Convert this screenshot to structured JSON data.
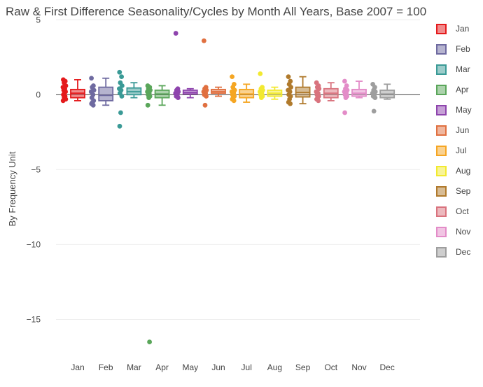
{
  "chart_data": {
    "type": "box",
    "title": "Raw & First Difference Seasonality/Cycles by Month All Years, Base 2007 = 100",
    "xlabel": "",
    "ylabel": "By Frequency Unit",
    "ylim": [
      -17.5,
      5.2
    ],
    "yticks": [
      5,
      0,
      -5,
      -10,
      -15
    ],
    "ytick_labels": [
      "5",
      "0",
      "−5",
      "−10",
      "−15"
    ],
    "grid": true,
    "legend_position": "right",
    "categories": [
      "Jan",
      "Feb",
      "Mar",
      "Apr",
      "May",
      "Jun",
      "Jul",
      "Aug",
      "Sep",
      "Oct",
      "Nov",
      "Dec"
    ],
    "series": [
      {
        "name": "Jan",
        "color": "#e41a1c",
        "box": {
          "q1": -0.2,
          "median": 0.1,
          "q3": 0.35,
          "whisker_low": -0.4,
          "whisker_high": 1.0
        },
        "points": [
          1.0,
          0.9,
          0.8,
          0.6,
          0.5,
          0.4,
          0.3,
          0.2,
          0.1,
          0.0,
          -0.1,
          -0.2,
          -0.3,
          -0.4
        ]
      },
      {
        "name": "Feb",
        "color": "#6e6aa0",
        "box": {
          "q1": -0.4,
          "median": -0.05,
          "q3": 0.5,
          "whisker_low": -0.7,
          "whisker_high": 1.1
        },
        "points": [
          1.1,
          0.6,
          0.5,
          0.3,
          0.2,
          0.0,
          -0.2,
          -0.4,
          -0.5,
          -0.6,
          -0.7
        ]
      },
      {
        "name": "Mar",
        "color": "#3a9a96",
        "box": {
          "q1": 0.0,
          "median": 0.2,
          "q3": 0.45,
          "whisker_low": -0.2,
          "whisker_high": 0.8
        },
        "points": [
          1.5,
          1.2,
          0.8,
          0.6,
          0.4,
          0.3,
          0.1,
          -0.1,
          -1.2,
          -2.1
        ]
      },
      {
        "name": "Apr",
        "color": "#5aa65a",
        "box": {
          "q1": -0.2,
          "median": 0.05,
          "q3": 0.3,
          "whisker_low": -0.7,
          "whisker_high": 0.6
        },
        "points": [
          0.6,
          0.5,
          0.4,
          0.3,
          0.2,
          0.1,
          0.0,
          -0.1,
          -0.2,
          -0.7,
          -16.5
        ]
      },
      {
        "name": "May",
        "color": "#8e44ad",
        "box": {
          "q1": 0.05,
          "median": 0.15,
          "q3": 0.3,
          "whisker_low": -0.2,
          "whisker_high": 0.4
        },
        "points": [
          4.1,
          0.4,
          0.3,
          0.2,
          0.1,
          0.0,
          -0.1,
          -0.2
        ]
      },
      {
        "name": "Jun",
        "color": "#e07040",
        "box": {
          "q1": 0.1,
          "median": 0.2,
          "q3": 0.35,
          "whisker_low": -0.1,
          "whisker_high": 0.5
        },
        "points": [
          3.6,
          0.5,
          0.4,
          0.3,
          0.2,
          0.1,
          0.0,
          -0.1,
          -0.7
        ]
      },
      {
        "name": "Jul",
        "color": "#f5a623",
        "box": {
          "q1": -0.2,
          "median": 0.05,
          "q3": 0.35,
          "whisker_low": -0.5,
          "whisker_high": 0.7
        },
        "points": [
          1.2,
          0.7,
          0.5,
          0.3,
          0.2,
          0.1,
          0.0,
          -0.1,
          -0.2,
          -0.3,
          -0.4
        ]
      },
      {
        "name": "Aug",
        "color": "#f2e930",
        "box": {
          "q1": -0.1,
          "median": 0.1,
          "q3": 0.3,
          "whisker_low": -0.3,
          "whisker_high": 0.5
        },
        "points": [
          1.4,
          0.5,
          0.4,
          0.3,
          0.2,
          0.1,
          0.0,
          -0.1,
          -0.2
        ]
      },
      {
        "name": "Sep",
        "color": "#b07a2c",
        "box": {
          "q1": -0.15,
          "median": 0.15,
          "q3": 0.5,
          "whisker_low": -0.6,
          "whisker_high": 1.2
        },
        "points": [
          1.2,
          0.9,
          0.7,
          0.5,
          0.3,
          0.2,
          0.0,
          -0.1,
          -0.3,
          -0.5,
          -0.6
        ]
      },
      {
        "name": "Oct",
        "color": "#d9737e",
        "box": {
          "q1": -0.2,
          "median": 0.1,
          "q3": 0.4,
          "whisker_low": -0.4,
          "whisker_high": 0.8
        },
        "points": [
          0.8,
          0.6,
          0.5,
          0.4,
          0.2,
          0.1,
          0.0,
          -0.1,
          -0.2,
          -0.3,
          -0.4
        ]
      },
      {
        "name": "Nov",
        "color": "#e38cc8",
        "box": {
          "q1": -0.1,
          "median": 0.1,
          "q3": 0.35,
          "whisker_low": -0.2,
          "whisker_high": 0.9
        },
        "points": [
          0.9,
          0.6,
          0.4,
          0.3,
          0.2,
          0.1,
          0.0,
          -0.1,
          -0.2,
          -1.2
        ]
      },
      {
        "name": "Dec",
        "color": "#9e9e9e",
        "box": {
          "q1": -0.2,
          "median": 0.05,
          "q3": 0.3,
          "whisker_low": -0.3,
          "whisker_high": 0.7
        },
        "points": [
          0.7,
          0.5,
          0.3,
          0.2,
          0.1,
          0.0,
          -0.1,
          -0.2,
          -1.1
        ]
      }
    ]
  }
}
